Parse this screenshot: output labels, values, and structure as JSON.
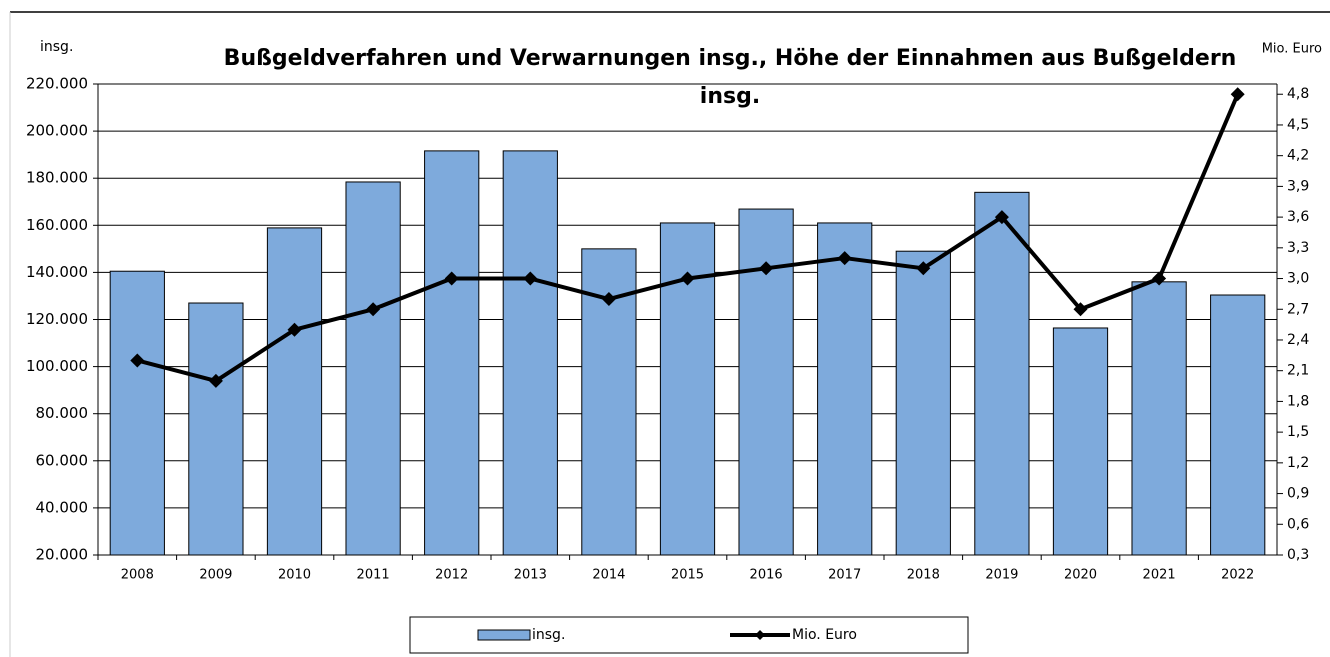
{
  "chart_data": {
    "type": "bar",
    "title": "Bußgeldverfahren und Verwarnungen insg., Höhe der Einnahmen aus Bußgeldern insg.",
    "ylabel": "insg.",
    "y2label": "Mio. Euro",
    "categories": [
      "2008",
      "2009",
      "2010",
      "2011",
      "2012",
      "2013",
      "2014",
      "2015",
      "2016",
      "2017",
      "2018",
      "2019",
      "2020",
      "2021",
      "2022"
    ],
    "series": [
      {
        "name": "insg.",
        "color": "#7eaadc",
        "values": [
          140500,
          127000,
          158900,
          178400,
          191600,
          191600,
          150000,
          161000,
          166900,
          161000,
          149000,
          174000,
          116400,
          136000,
          130400
        ]
      },
      {
        "name": "Mio. Euro",
        "type": "line",
        "axis": "y2",
        "color": "#000000",
        "values": [
          2.2,
          2.0,
          2.5,
          2.7,
          3.0,
          3.0,
          2.8,
          3.0,
          3.1,
          3.2,
          3.1,
          3.6,
          2.7,
          3.0,
          4.8
        ]
      }
    ],
    "ylim": [
      20000,
      220000
    ],
    "yticks": [
      {
        "value": 20000,
        "label": "20.000"
      },
      {
        "value": 40000,
        "label": "40.000"
      },
      {
        "value": 60000,
        "label": "60.000"
      },
      {
        "value": 80000,
        "label": "80.000"
      },
      {
        "value": 100000,
        "label": "100.000"
      },
      {
        "value": 120000,
        "label": "120.000"
      },
      {
        "value": 140000,
        "label": "140.000"
      },
      {
        "value": 160000,
        "label": "160.000"
      },
      {
        "value": 180000,
        "label": "180.000"
      },
      {
        "value": 200000,
        "label": "200.000"
      },
      {
        "value": 220000,
        "label": "220.000"
      }
    ],
    "y2lim": [
      0.3,
      4.9
    ],
    "y2ticks": [
      {
        "value": 0.3,
        "label": "0,3"
      },
      {
        "value": 0.6,
        "label": "0,6"
      },
      {
        "value": 0.9,
        "label": "0,9"
      },
      {
        "value": 1.2,
        "label": "1,2"
      },
      {
        "value": 1.5,
        "label": "1,5"
      },
      {
        "value": 1.8,
        "label": "1,8"
      },
      {
        "value": 2.1,
        "label": "2,1"
      },
      {
        "value": 2.4,
        "label": "2,4"
      },
      {
        "value": 2.7,
        "label": "2,7"
      },
      {
        "value": 3.0,
        "label": "3,0"
      },
      {
        "value": 3.3,
        "label": "3,3"
      },
      {
        "value": 3.6,
        "label": "3,6"
      },
      {
        "value": 3.9,
        "label": "3,9"
      },
      {
        "value": 4.2,
        "label": "4,2"
      },
      {
        "value": 4.5,
        "label": "4,5"
      },
      {
        "value": 4.8,
        "label": "4,8"
      }
    ],
    "grid": true,
    "legend": "bottom"
  }
}
